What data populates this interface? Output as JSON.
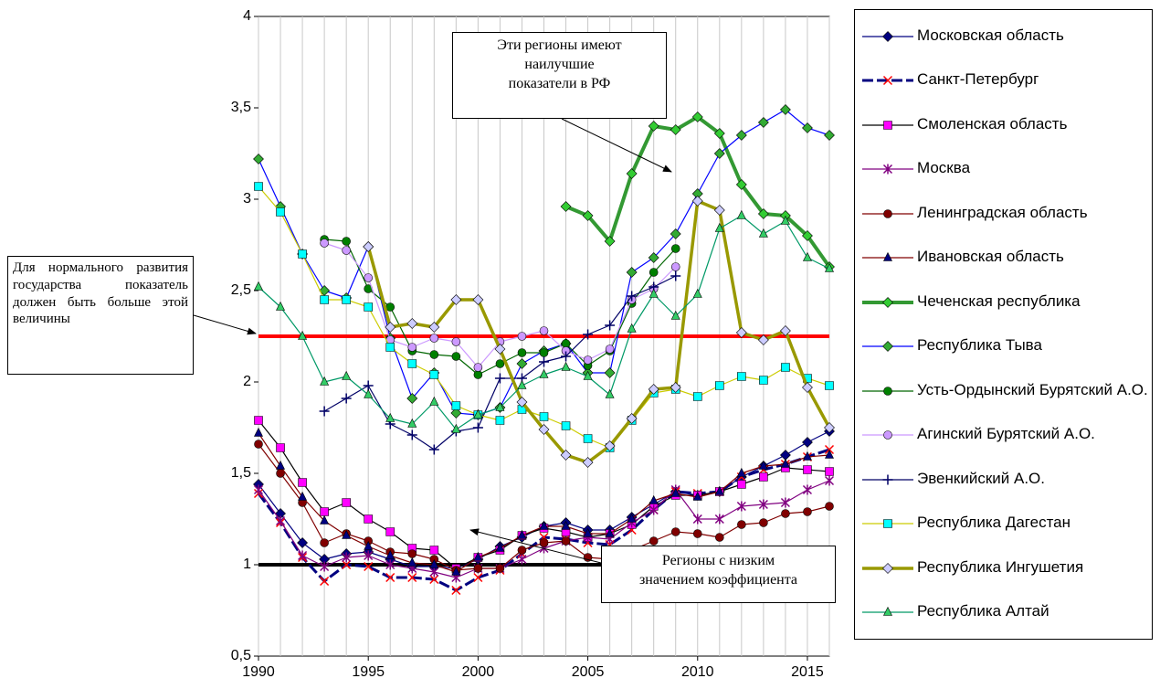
{
  "chart_data": {
    "type": "line",
    "x": [
      1990,
      1991,
      1992,
      1993,
      1994,
      1995,
      1996,
      1997,
      1998,
      1999,
      2000,
      2001,
      2002,
      2003,
      2004,
      2005,
      2006,
      2007,
      2008,
      2009,
      2010,
      2011,
      2012,
      2013,
      2014,
      2015,
      2016
    ],
    "xlim": [
      1990,
      2016
    ],
    "xticks": [
      1990,
      1995,
      2000,
      2005,
      2010,
      2015
    ],
    "ylim": [
      0.5,
      4
    ],
    "yticks": [
      {
        "value": 0.5,
        "label": "0,5"
      },
      1,
      {
        "value": 1.5,
        "label": "1,5"
      },
      2,
      {
        "value": 2.5,
        "label": "2,5"
      },
      3,
      {
        "value": 3.5,
        "label": "3,5"
      },
      4
    ],
    "grid": "x",
    "legend": "right",
    "reference_lines": [
      {
        "value": 2.25,
        "color": "#ff0000"
      },
      {
        "value": 1,
        "color": "#000000"
      }
    ],
    "annotations": {
      "best": "Эти регионы имеют\nнаилучшие\nпоказатели в РФ",
      "threshold": "Для нормального развития государства показатель должен быть больше этой величины",
      "low": "Регионы с низким\nзначением коэффициента"
    },
    "series": [
      {
        "name": "Московская область",
        "color": "#000080",
        "marker": "diamond",
        "marker_color": "#000080",
        "width": 1.2,
        "values": [
          1.44,
          1.28,
          1.12,
          1.03,
          1.06,
          1.07,
          1.03,
          0.99,
          0.99,
          0.98,
          1.03,
          1.1,
          1.15,
          1.21,
          1.23,
          1.19,
          1.19,
          1.26,
          1.33,
          1.4,
          1.38,
          1.4,
          1.48,
          1.54,
          1.6,
          1.67,
          1.73
        ]
      },
      {
        "name": "Санкт-Петербург",
        "color": "#000080",
        "marker": "x",
        "marker_color": "#ff0000",
        "width": 3,
        "dashed": true,
        "values": [
          1.39,
          1.23,
          1.04,
          0.91,
          1.0,
          0.99,
          0.93,
          0.93,
          0.92,
          0.86,
          0.93,
          0.97,
          1.06,
          1.15,
          1.14,
          1.12,
          1.11,
          1.19,
          1.3,
          1.4,
          1.39,
          1.4,
          1.48,
          1.52,
          1.55,
          1.59,
          1.63
        ]
      },
      {
        "name": "Смоленская область",
        "color": "#000000",
        "marker": "square",
        "marker_color": "#ff00ff",
        "width": 1.2,
        "values": [
          1.79,
          1.64,
          1.45,
          1.29,
          1.34,
          1.25,
          1.18,
          1.09,
          1.08,
          0.98,
          1.04,
          1.08,
          1.16,
          1.2,
          1.18,
          1.15,
          1.17,
          1.22,
          1.32,
          1.38,
          1.38,
          1.4,
          1.44,
          1.48,
          1.53,
          1.52,
          1.51
        ]
      },
      {
        "name": "Москва",
        "color": "#800080",
        "marker": "asterisk",
        "marker_color": "#800080",
        "width": 1.2,
        "values": [
          1.41,
          1.24,
          1.05,
          0.99,
          1.04,
          1.05,
          1.0,
          0.98,
          0.96,
          0.93,
          0.98,
          0.98,
          1.03,
          1.09,
          1.13,
          1.15,
          1.14,
          1.23,
          1.3,
          1.41,
          1.25,
          1.25,
          1.32,
          1.33,
          1.34,
          1.41,
          1.46
        ]
      },
      {
        "name": "Ленинградская область",
        "color": "#800000",
        "marker": "circle",
        "marker_color": "#800000",
        "width": 1.2,
        "values": [
          1.66,
          1.5,
          1.34,
          1.12,
          1.17,
          1.13,
          1.07,
          1.06,
          1.03,
          0.97,
          0.98,
          0.98,
          1.08,
          1.12,
          1.13,
          1.04,
          1.03,
          1.08,
          1.13,
          1.18,
          1.17,
          1.15,
          1.22,
          1.23,
          1.28,
          1.29,
          1.32
        ]
      },
      {
        "name": "Ивановская область",
        "color": "#800000",
        "marker": "triangle",
        "marker_color": "#000080",
        "width": 1.2,
        "values": [
          1.72,
          1.54,
          1.37,
          1.24,
          1.16,
          1.1,
          1.05,
          1.01,
          1.0,
          0.96,
          1.04,
          1.09,
          1.16,
          1.21,
          1.21,
          1.17,
          1.17,
          1.25,
          1.35,
          1.39,
          1.37,
          1.4,
          1.5,
          1.54,
          1.55,
          1.59,
          1.6
        ]
      },
      {
        "name": "Чеченская республика",
        "color": "#339933",
        "marker": "diamond",
        "marker_color": "#33cc33",
        "width": 4,
        "values": [
          null,
          null,
          null,
          null,
          null,
          null,
          null,
          null,
          null,
          null,
          null,
          null,
          null,
          null,
          2.96,
          2.91,
          2.77,
          3.14,
          3.4,
          3.38,
          3.45,
          3.36,
          3.08,
          2.92,
          2.91,
          2.8,
          2.63
        ]
      },
      {
        "name": "Республика Тыва",
        "color": "#0000ff",
        "marker": "diamond",
        "marker_color": "#33aa33",
        "width": 1.2,
        "values": [
          3.22,
          2.96,
          2.7,
          2.5,
          2.46,
          2.74,
          2.24,
          1.91,
          2.05,
          1.83,
          1.82,
          1.86,
          2.1,
          2.17,
          2.21,
          2.05,
          2.05,
          2.6,
          2.68,
          2.81,
          3.03,
          3.25,
          3.35,
          3.42,
          3.49,
          3.39,
          3.35
        ]
      },
      {
        "name": "Усть-Ордынский Бурятский А.О.",
        "color": "#006600",
        "marker": "circle",
        "marker_color": "#008000",
        "width": 1.2,
        "values": [
          null,
          null,
          null,
          2.78,
          2.77,
          2.51,
          2.41,
          2.17,
          2.15,
          2.14,
          2.04,
          2.1,
          2.16,
          2.16,
          2.21,
          2.09,
          2.17,
          2.43,
          2.6,
          2.73,
          null,
          null,
          null,
          null,
          null,
          null,
          null
        ]
      },
      {
        "name": "Агинский Бурятский А.О.",
        "color": "#cc99ff",
        "marker": "circle",
        "marker_color": "#cc99ff",
        "width": 1.2,
        "values": [
          null,
          null,
          null,
          2.76,
          2.72,
          2.57,
          2.23,
          2.19,
          2.24,
          2.22,
          2.08,
          2.22,
          2.25,
          2.28,
          2.17,
          2.12,
          2.18,
          2.45,
          2.51,
          2.63,
          null,
          null,
          null,
          null,
          null,
          null,
          null
        ]
      },
      {
        "name": "Эвенкийский А.О.",
        "color": "#000066",
        "marker": "plus",
        "marker_color": "#000066",
        "width": 1.2,
        "values": [
          null,
          null,
          null,
          1.84,
          1.91,
          1.98,
          1.77,
          1.71,
          1.63,
          1.73,
          1.75,
          2.02,
          2.02,
          2.11,
          2.14,
          2.26,
          2.31,
          2.47,
          2.52,
          2.58,
          null,
          null,
          null,
          null,
          null,
          null,
          null
        ]
      },
      {
        "name": "Республика Дагестан",
        "color": "#cccc00",
        "marker": "square",
        "marker_color": "#00ffff",
        "width": 1.2,
        "values": [
          3.07,
          2.93,
          2.7,
          2.45,
          2.45,
          2.41,
          2.19,
          2.1,
          2.04,
          1.87,
          1.82,
          1.79,
          1.85,
          1.81,
          1.76,
          1.69,
          1.64,
          1.79,
          1.94,
          1.96,
          1.92,
          1.98,
          2.03,
          2.01,
          2.08,
          2.02,
          1.98
        ]
      },
      {
        "name": "Республика Ингушетия",
        "color": "#999900",
        "marker": "diamond",
        "marker_color": "#ccccff",
        "width": 3.5,
        "values": [
          null,
          null,
          null,
          null,
          null,
          2.74,
          2.3,
          2.32,
          2.3,
          2.45,
          2.45,
          2.18,
          1.89,
          1.74,
          1.6,
          1.56,
          1.65,
          1.8,
          1.96,
          1.97,
          2.99,
          2.94,
          2.27,
          2.23,
          2.28,
          1.97,
          1.75
        ]
      },
      {
        "name": "Республика Алтай",
        "color": "#009966",
        "marker": "triangle",
        "marker_color": "#33cc66",
        "width": 1.2,
        "values": [
          2.52,
          2.41,
          2.25,
          2.0,
          2.03,
          1.93,
          1.8,
          1.77,
          1.89,
          1.74,
          1.82,
          1.86,
          1.98,
          2.04,
          2.08,
          2.03,
          1.93,
          2.29,
          2.48,
          2.36,
          2.48,
          2.84,
          2.91,
          2.81,
          2.88,
          2.68,
          2.62
        ]
      }
    ]
  }
}
